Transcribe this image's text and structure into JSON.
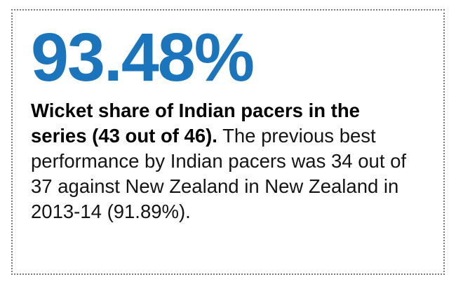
{
  "card": {
    "headline": "93.48%",
    "description": {
      "bold_text": "Wicket share of Indian pacers in the series (43 out of 46).",
      "regular_text": " The previous best performance by Indian pacers was 34 out of 37 against New Zealand in New Zealand in 2013-14 (91.89%)."
    },
    "colors": {
      "headline": "#1b75bc",
      "body_text": "#141414",
      "bold_text": "#000000",
      "border": "#7b7b7b",
      "background": "#ffffff"
    }
  }
}
